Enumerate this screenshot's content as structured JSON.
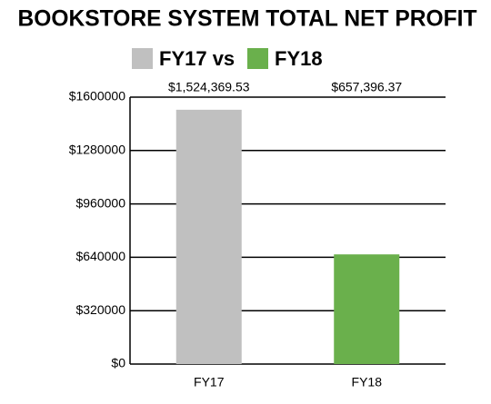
{
  "chart_data": {
    "type": "bar",
    "title": "BOOKSTORE SYSTEM TOTAL NET PROFIT",
    "legend": [
      {
        "name": "FY17 vs",
        "color": "#c0c0c0"
      },
      {
        "name": "FY18",
        "color": "#6ab04c"
      }
    ],
    "categories": [
      "FY17",
      "FY18"
    ],
    "values": [
      1524369.53,
      657396.37
    ],
    "value_labels": [
      "$1,524,369.53",
      "$657,396.37"
    ],
    "ylim": [
      0,
      1600000
    ],
    "yticks": [
      {
        "value": 0,
        "label": "$0"
      },
      {
        "value": 320000,
        "label": "$320000"
      },
      {
        "value": 640000,
        "label": "$640000"
      },
      {
        "value": 960000,
        "label": "$960000"
      },
      {
        "value": 1280000,
        "label": "$1280000"
      },
      {
        "value": 1600000,
        "label": "$1600000"
      }
    ],
    "grid": true
  }
}
